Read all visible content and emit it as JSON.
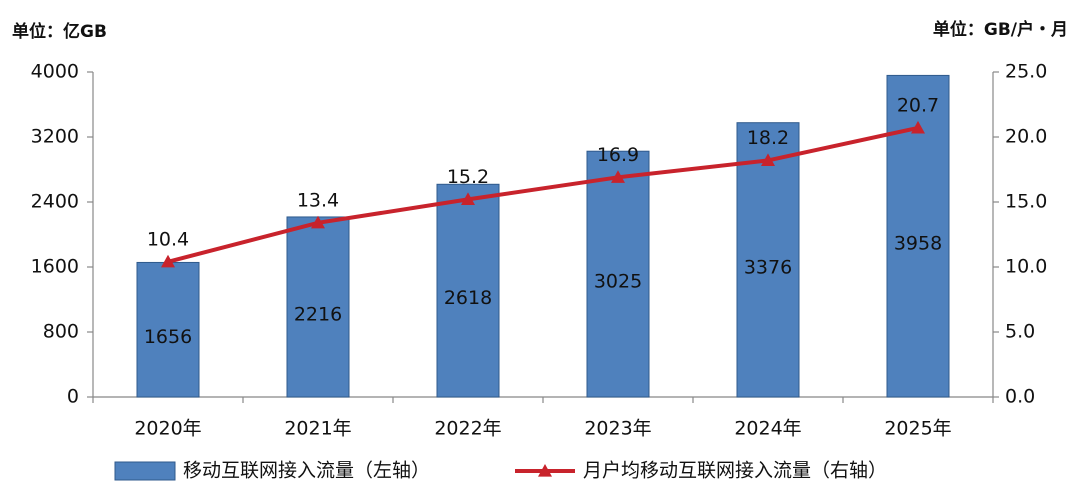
{
  "chart_data": {
    "type": "combo",
    "unit_left": "单位：亿GB",
    "unit_right": "单位：GB/户・月",
    "categories": [
      "2020年",
      "2021年",
      "2022年",
      "2023年",
      "2024年",
      "2025年"
    ],
    "series": [
      {
        "name": "移动互联网接入流量（左轴）",
        "type": "bar",
        "color": "#4f81bd",
        "values": [
          1656,
          2216,
          2618,
          3025,
          3376,
          3958
        ]
      },
      {
        "name": "月户均移动互联网接入流量（右轴）",
        "type": "line",
        "axis": "y2",
        "color": "#c8232c",
        "values": [
          10.4,
          13.4,
          15.2,
          16.9,
          18.2,
          20.7
        ]
      }
    ],
    "ylim": [
      0,
      4000
    ],
    "yticks": [
      0,
      800,
      1600,
      2400,
      3200,
      4000
    ],
    "y2lim": [
      0,
      25
    ],
    "y2ticks": [
      {
        "value": 0,
        "label": "0.0"
      },
      {
        "value": 5,
        "label": "5.0"
      },
      {
        "value": 10,
        "label": "10.0"
      },
      {
        "value": 15,
        "label": "15.0"
      },
      {
        "value": 20,
        "label": "20.0"
      },
      {
        "value": 25,
        "label": "25.0"
      }
    ],
    "grid": false
  }
}
